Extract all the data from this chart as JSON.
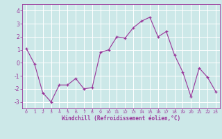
{
  "x": [
    0,
    1,
    2,
    3,
    4,
    5,
    6,
    7,
    8,
    9,
    10,
    11,
    12,
    13,
    14,
    15,
    16,
    17,
    18,
    19,
    20,
    21,
    22,
    23
  ],
  "y": [
    1.1,
    -0.1,
    -2.3,
    -3.0,
    -1.7,
    -1.7,
    -1.2,
    -2.0,
    -1.9,
    0.8,
    1.0,
    2.0,
    1.9,
    2.7,
    3.2,
    3.5,
    2.0,
    2.4,
    0.6,
    -0.7,
    -2.6,
    -0.4,
    -1.1,
    -2.2
  ],
  "ylim": [
    -3.5,
    4.5
  ],
  "yticks": [
    -3,
    -2,
    -1,
    0,
    1,
    2,
    3,
    4
  ],
  "xticks": [
    0,
    1,
    2,
    3,
    4,
    5,
    6,
    7,
    8,
    9,
    10,
    11,
    12,
    13,
    14,
    15,
    16,
    17,
    18,
    19,
    20,
    21,
    22,
    23
  ],
  "line_color": "#993399",
  "marker": "+",
  "marker_color": "#993399",
  "bg_color": "#cce8e8",
  "grid_color": "#ffffff",
  "xlabel": "Windchill (Refroidissement éolien,°C)",
  "xlabel_color": "#993399",
  "tick_color": "#993399",
  "axis_color": "#993399",
  "figsize": [
    3.2,
    2.0
  ],
  "dpi": 100
}
